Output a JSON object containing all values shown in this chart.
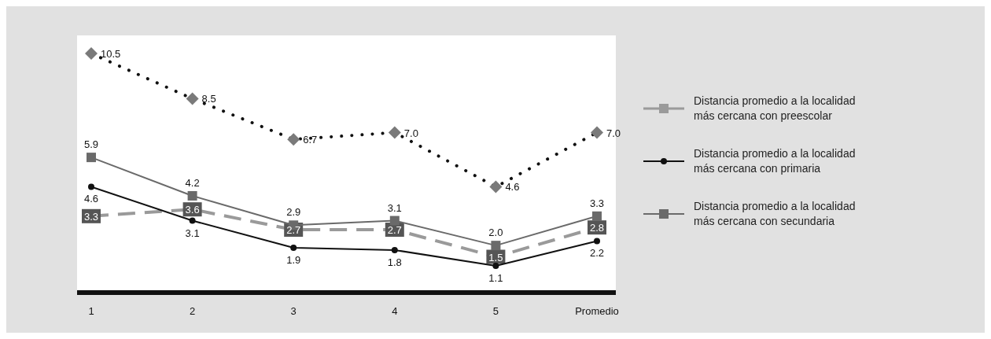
{
  "chart_data": {
    "type": "line",
    "categories": [
      "1",
      "2",
      "3",
      "4",
      "5",
      "Promedio"
    ],
    "series": [
      {
        "name": "Distancia promedio a la localidad más cercana con preescolar",
        "color": "#9a9a9a",
        "line_style": "dashed",
        "marker": "square",
        "values": [
          3.3,
          3.6,
          2.7,
          2.7,
          1.5,
          2.8
        ],
        "value_labels": [
          "3.3",
          "3.6",
          "2.7",
          "2.7",
          "1.5",
          "2.8"
        ]
      },
      {
        "name": "Distancia promedio a la localidad más cercana con primaria",
        "color": "#111111",
        "line_style": "solid",
        "marker": "circle",
        "values": [
          4.6,
          3.1,
          1.9,
          1.8,
          1.1,
          2.2
        ],
        "value_labels": [
          "4.6",
          "3.1",
          "1.9",
          "1.8",
          "1.1",
          "2.2"
        ]
      },
      {
        "name": "Distancia promedio a la localidad más cercana con secundaria",
        "color": "#6a6a6a",
        "line_style": "solid",
        "marker": "square",
        "values": [
          5.9,
          4.2,
          2.9,
          3.1,
          2.0,
          3.3
        ],
        "value_labels": [
          "5.9",
          "4.2",
          "2.9",
          "3.1",
          "2.0",
          "3.3"
        ]
      },
      {
        "color": "#111111",
        "line_style": "dotted",
        "marker": "diamond",
        "values": [
          10.5,
          8.5,
          6.7,
          7.0,
          4.6,
          7.0
        ],
        "value_labels": [
          "10.5",
          "8.5",
          "6.7",
          "7.0",
          "4.6",
          "7.0"
        ]
      }
    ],
    "legend": "right"
  }
}
